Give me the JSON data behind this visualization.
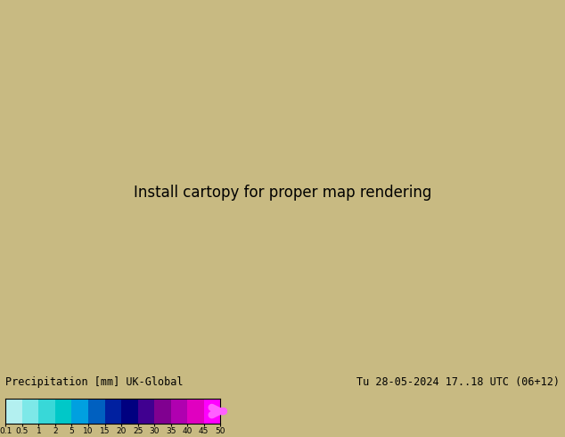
{
  "title_left": "Precipitation [mm] UK-Global",
  "title_right": "Tu 28-05-2024 17..18 UTC (06+12)",
  "colorbar_levels": [
    0.1,
    0.5,
    1,
    2,
    5,
    10,
    15,
    20,
    25,
    30,
    35,
    40,
    45,
    50
  ],
  "colorbar_colors": [
    "#b3f0f0",
    "#7de8e8",
    "#38d8d8",
    "#00c8c8",
    "#00a0e0",
    "#0060c0",
    "#0020a0",
    "#000080",
    "#400090",
    "#800090",
    "#b000b0",
    "#e000c0",
    "#ff00ff",
    "#ff60ff"
  ],
  "land_color": "#c8c09a",
  "sea_color": "#a8c0d0",
  "domain_color": "#f0f0f0",
  "green_precip_color": "#c8e8a0",
  "cyan_precip_color": "#90d8e8",
  "background_color": "#c8ba82",
  "fig_width": 6.34,
  "fig_height": 4.9,
  "dpi": 100,
  "label_fontsize": 8.5,
  "title_fontsize": 8.5,
  "contour_fontsize": 6.5
}
